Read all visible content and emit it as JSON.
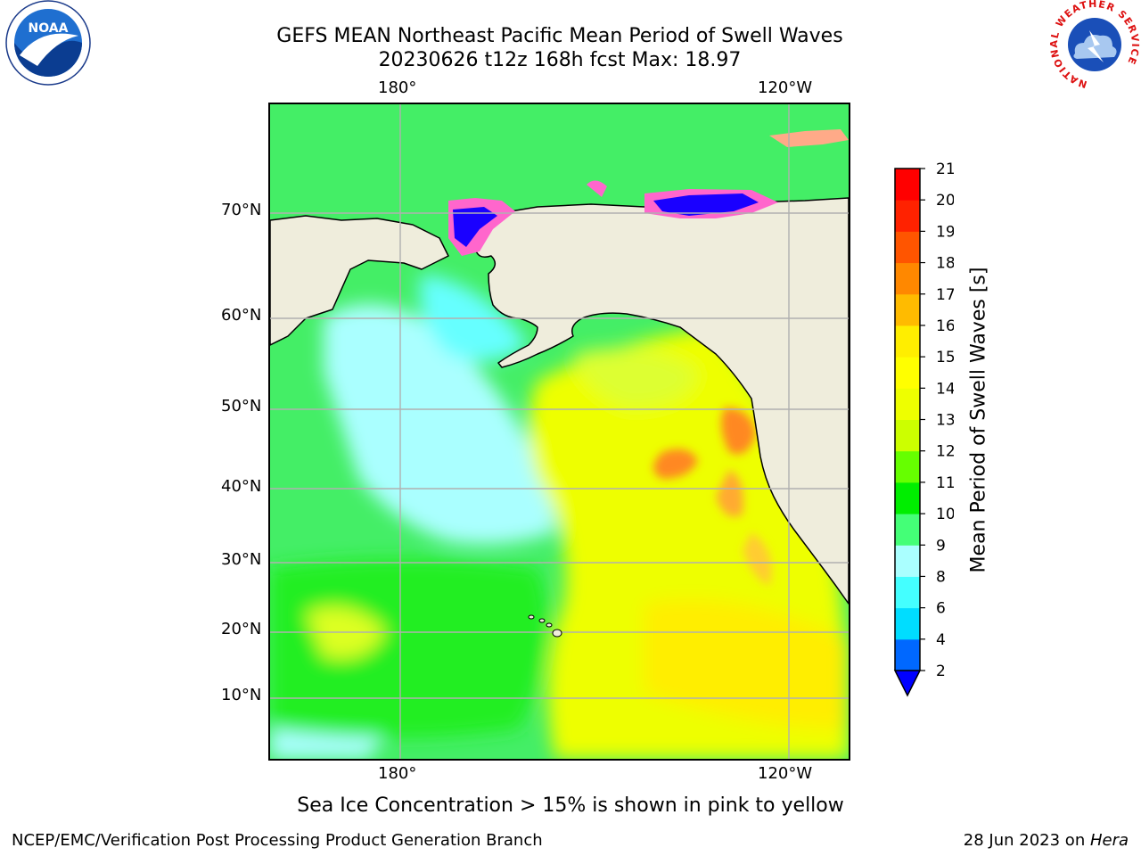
{
  "title": {
    "line1": "GEFS MEAN Northeast Pacific Mean Period of Swell Waves",
    "line2": "20230626 t12z 168h fcst   Max: 18.97"
  },
  "map": {
    "lon_labels_top": [
      "180°",
      "120°W"
    ],
    "lon_labels_bottom": [
      "180°",
      "120°W"
    ],
    "lat_labels": [
      "70°N",
      "60°N",
      "50°N",
      "40°N",
      "30°N",
      "20°N",
      "10°N"
    ],
    "colors": {
      "land": "#efeddc",
      "coast": "#000000",
      "grid": "#b0b0b0",
      "ice_pink": "#ff66cc",
      "ice_blue": "#1a00ff"
    }
  },
  "colorbar": {
    "label": "Mean Period of Swell Waves [s]",
    "ticks": [
      "2",
      "4",
      "6",
      "8",
      "9",
      "10",
      "11",
      "12",
      "13",
      "14",
      "15",
      "16",
      "17",
      "18",
      "19",
      "20",
      "21"
    ],
    "colors": [
      "#0068ff",
      "#00ddff",
      "#44ffff",
      "#aaffff",
      "#44ff77",
      "#00ee00",
      "#66ff00",
      "#ccff00",
      "#eeff00",
      "#ffff00",
      "#ffee00",
      "#ffbb00",
      "#ff8800",
      "#ff5500",
      "#ff2200",
      "#ff0000"
    ],
    "under_color": "#0000ff"
  },
  "note": "Sea Ice Concentration > 15% is shown in pink to yellow",
  "footer": {
    "left": "NCEP/EMC/Verification Post Processing Product Generation Branch",
    "date": "28 Jun 2023 on ",
    "machine": "Hera"
  },
  "logos": {
    "noaa_text": "NOAA",
    "nws_ring_text": "NATIONAL WEATHER SERVICE"
  }
}
